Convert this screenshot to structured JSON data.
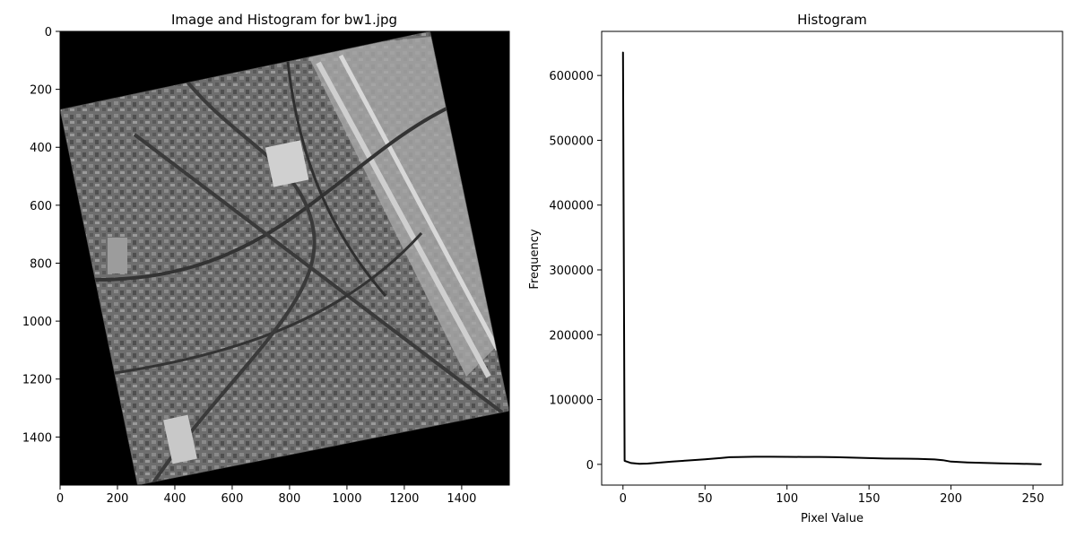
{
  "chart_data": [
    {
      "type": "image",
      "title": "Image and Histogram for bw1.jpg",
      "xlabel": "",
      "ylabel": "",
      "xlim": [
        0,
        1566
      ],
      "ylim": [
        1566,
        0
      ],
      "xticks": [
        0,
        200,
        400,
        600,
        800,
        1000,
        1200,
        1400
      ],
      "yticks": [
        0,
        200,
        400,
        600,
        800,
        1000,
        1200,
        1400
      ],
      "image": {
        "description": "grayscale rotated aerial photograph of a city with an airport runway",
        "corners": [
          [
            1290,
            0
          ],
          [
            1566,
            1310
          ],
          [
            270,
            1566
          ],
          [
            0,
            270
          ]
        ],
        "background_color": "#000000"
      }
    },
    {
      "type": "line",
      "title": "Histogram",
      "xlabel": "Pixel Value",
      "ylabel": "Frequency",
      "xlim": [
        -13,
        268
      ],
      "ylim": [
        -32000,
        668000
      ],
      "xticks": [
        0,
        50,
        100,
        150,
        200,
        250
      ],
      "yticks": [
        0,
        100000,
        200000,
        300000,
        400000,
        500000,
        600000
      ],
      "color": "#000000",
      "series": [
        {
          "x": [
            0,
            1,
            2,
            5,
            10,
            15,
            20,
            30,
            40,
            50,
            60,
            65,
            70,
            80,
            90,
            100,
            110,
            120,
            130,
            140,
            150,
            160,
            170,
            180,
            190,
            195,
            200,
            210,
            220,
            230,
            240,
            250,
            255
          ],
          "values": [
            636000,
            5500,
            4500,
            2000,
            900,
            1200,
            2200,
            4300,
            6000,
            7700,
            9800,
            11000,
            11300,
            11700,
            11700,
            11600,
            11500,
            11500,
            11000,
            10300,
            9600,
            9000,
            8800,
            8500,
            7500,
            6500,
            4300,
            3000,
            2200,
            1500,
            1000,
            500,
            300
          ]
        }
      ]
    }
  ]
}
